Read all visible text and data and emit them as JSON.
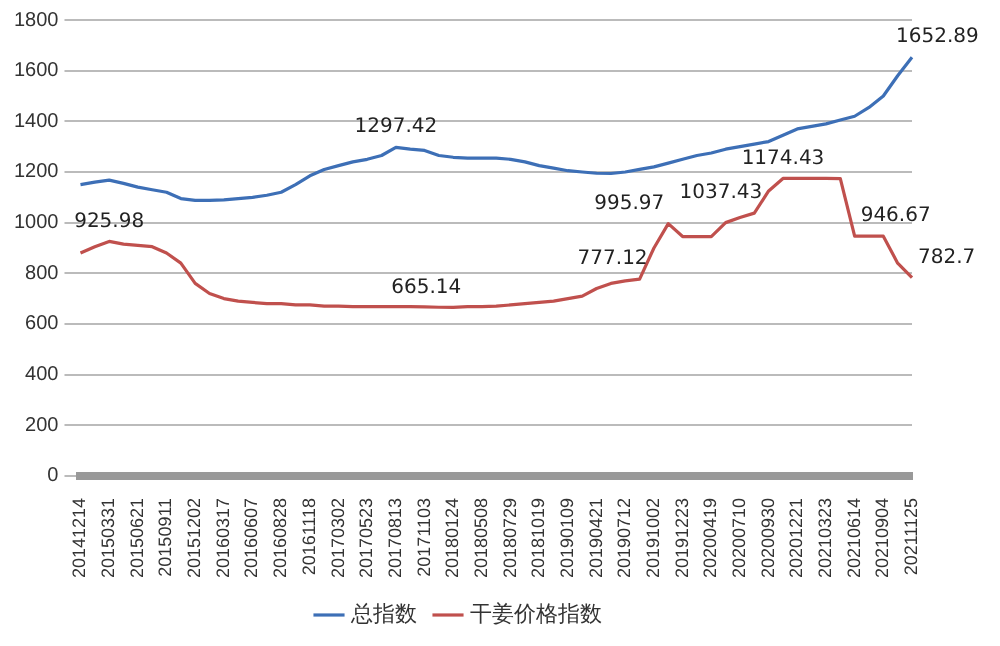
{
  "chart_data": {
    "type": "line",
    "categories": [
      "20141214",
      null,
      "20150331",
      null,
      "20150621",
      null,
      "20150911",
      null,
      "20151202",
      null,
      "20160317",
      null,
      "20160607",
      null,
      "20160828",
      null,
      "20161118",
      null,
      "20170302",
      null,
      "20170523",
      null,
      "20170813",
      null,
      "20171103",
      null,
      "20180124",
      null,
      "20180508",
      null,
      "20180729",
      null,
      "20181019",
      null,
      "20190109",
      null,
      "20190421",
      null,
      "20190712",
      null,
      "20191002",
      null,
      "20191223",
      null,
      "20200419",
      null,
      "20200710",
      null,
      "20200930",
      null,
      "20201221",
      null,
      "20210323",
      null,
      "20210614",
      null,
      "20210904",
      null,
      "20211125"
    ],
    "series": [
      {
        "name": "总指数",
        "color": "#3d6fb6",
        "values": [
          1150,
          1160,
          1168,
          1155,
          1140,
          1130,
          1120,
          1095,
          1088,
          1088,
          1090,
          1095,
          1100,
          1108,
          1120,
          1150,
          1185,
          1210,
          1225,
          1240,
          1250,
          1265,
          1297.42,
          1290,
          1285,
          1265,
          1258,
          1255,
          1255,
          1255,
          1250,
          1240,
          1225,
          1215,
          1205,
          1200,
          1195,
          1194,
          1200,
          1210,
          1220,
          1235,
          1250,
          1265,
          1275,
          1290,
          1300,
          1310,
          1320,
          1345,
          1370,
          1380,
          1390,
          1405,
          1420,
          1455,
          1500,
          1580,
          1652.89
        ],
        "value_labels": [
          null,
          null,
          null,
          null,
          null,
          null,
          null,
          null,
          null,
          null,
          null,
          null,
          null,
          null,
          null,
          null,
          null,
          null,
          null,
          null,
          null,
          null,
          "1297.42",
          null,
          null,
          null,
          null,
          null,
          null,
          null,
          null,
          null,
          null,
          null,
          null,
          null,
          null,
          null,
          null,
          null,
          null,
          null,
          null,
          null,
          null,
          null,
          null,
          null,
          null,
          null,
          null,
          null,
          null,
          null,
          null,
          null,
          null,
          null,
          "1652.89"
        ]
      },
      {
        "name": "干姜价格指数",
        "color": "#c0504d",
        "values": [
          880,
          905,
          925.98,
          915,
          910,
          905,
          880,
          840,
          760,
          720,
          700,
          690,
          685,
          680,
          680,
          675,
          675,
          670,
          670,
          668,
          668,
          668,
          668,
          668,
          667,
          666,
          665.14,
          668,
          668,
          670,
          675,
          680,
          685,
          690,
          700,
          710,
          740,
          760,
          770,
          777.12,
          900,
          995.97,
          945,
          945,
          945,
          1000,
          1020,
          1037.43,
          1125,
          1174.43,
          1174.43,
          1174.43,
          1174.43,
          1174,
          946.67,
          946.67,
          946.67,
          840,
          782.7
        ],
        "value_labels": [
          null,
          null,
          "925.98",
          null,
          null,
          null,
          null,
          null,
          null,
          null,
          null,
          null,
          null,
          null,
          null,
          null,
          null,
          null,
          null,
          null,
          null,
          null,
          null,
          null,
          null,
          null,
          "665.14",
          null,
          null,
          null,
          null,
          null,
          null,
          null,
          null,
          null,
          null,
          null,
          null,
          "777.12",
          null,
          "995.97",
          null,
          null,
          null,
          null,
          null,
          "1037.43",
          null,
          "1174.43",
          null,
          null,
          null,
          null,
          "946.67",
          null,
          null,
          null,
          "782.7"
        ]
      }
    ],
    "ylim": [
      0,
      1800
    ],
    "yticks": [
      0,
      200,
      400,
      600,
      800,
      1000,
      1200,
      1400,
      1600,
      1800
    ],
    "grid": "y",
    "legend": "bottom",
    "marker": "none",
    "line_style": "solid"
  }
}
